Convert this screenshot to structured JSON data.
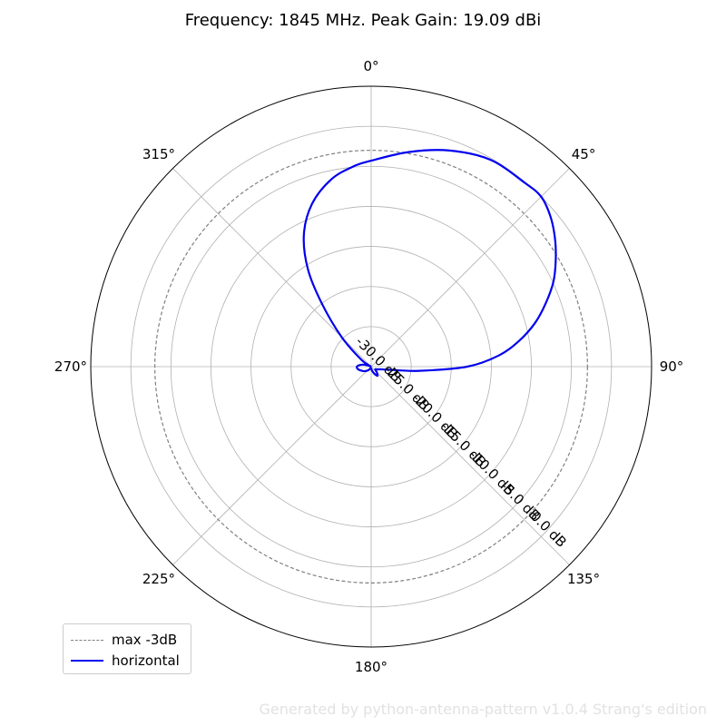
{
  "chart_data": {
    "type": "polar",
    "title": "Frequency: 1845 MHz. Peak Gain: 19.09 dBi",
    "angle_direction": "clockwise",
    "angle_zero": "top",
    "angle_tick_labels": [
      "0°",
      "45°",
      "90°",
      "135°",
      "180°",
      "225°",
      "270°",
      "315°"
    ],
    "angle_ticks_deg": [
      0,
      45,
      90,
      135,
      180,
      225,
      270,
      315
    ],
    "radial_range_db": [
      -30,
      5
    ],
    "radial_ticks_db": [
      0,
      -5,
      -10,
      -15,
      -20,
      -25,
      -30
    ],
    "radial_tick_labels": [
      "0.0 dB",
      "-5.0 dB",
      "-10.0 dB",
      "-15.0 dB",
      "-20.0 dB",
      "-25.0 dB",
      "-30.0 dB"
    ],
    "radial_label_angle_deg": 135,
    "grid": true,
    "legend_position": "bottom-left",
    "reference": {
      "name": "max -3dB",
      "value_db": -3,
      "color": "#808080",
      "style": "dashed"
    },
    "series": [
      {
        "name": "horizontal",
        "color": "#0000ee",
        "points_deg_db": [
          [
            0,
            -4.3
          ],
          [
            10,
            -2.8
          ],
          [
            20,
            -1.3
          ],
          [
            30,
            -0.2
          ],
          [
            40,
            -0.1
          ],
          [
            45,
            0.0
          ],
          [
            50,
            -0.8
          ],
          [
            55,
            -2.0
          ],
          [
            60,
            -3.4
          ],
          [
            65,
            -4.9
          ],
          [
            70,
            -6.8
          ],
          [
            75,
            -8.8
          ],
          [
            80,
            -11.2
          ],
          [
            85,
            -14.0
          ],
          [
            90,
            -18.0
          ],
          [
            95,
            -24.0
          ],
          [
            100,
            -27.8
          ],
          [
            105,
            -28.7
          ],
          [
            115,
            -29.2
          ],
          [
            125,
            -29.4
          ],
          [
            135,
            -29.0
          ],
          [
            145,
            -28.6
          ],
          [
            155,
            -29.0
          ],
          [
            165,
            -29.4
          ],
          [
            175,
            -29.7
          ],
          [
            185,
            -29.8
          ],
          [
            195,
            -29.8
          ],
          [
            205,
            -29.7
          ],
          [
            220,
            -29.4
          ],
          [
            235,
            -29.0
          ],
          [
            250,
            -28.6
          ],
          [
            260,
            -28.3
          ],
          [
            268,
            -28.2
          ],
          [
            275,
            -28.4
          ],
          [
            283,
            -28.9
          ],
          [
            290,
            -29.5
          ],
          [
            297,
            -29.9
          ],
          [
            305,
            -28.5
          ],
          [
            315,
            -24.8
          ],
          [
            322,
            -20.0
          ],
          [
            327,
            -15.5
          ],
          [
            333,
            -11.5
          ],
          [
            340,
            -8.4
          ],
          [
            348,
            -6.1
          ],
          [
            355,
            -4.9
          ],
          [
            360,
            -4.3
          ]
        ]
      }
    ]
  },
  "legend": {
    "items": [
      {
        "label": "max -3dB",
        "color": "#808080",
        "style": "dashed"
      },
      {
        "label": "horizontal",
        "color": "#0000ee",
        "style": "solid"
      }
    ]
  },
  "footer": {
    "watermark": "Generated by python-antenna-pattern v1.0.4 Strang's edition"
  }
}
